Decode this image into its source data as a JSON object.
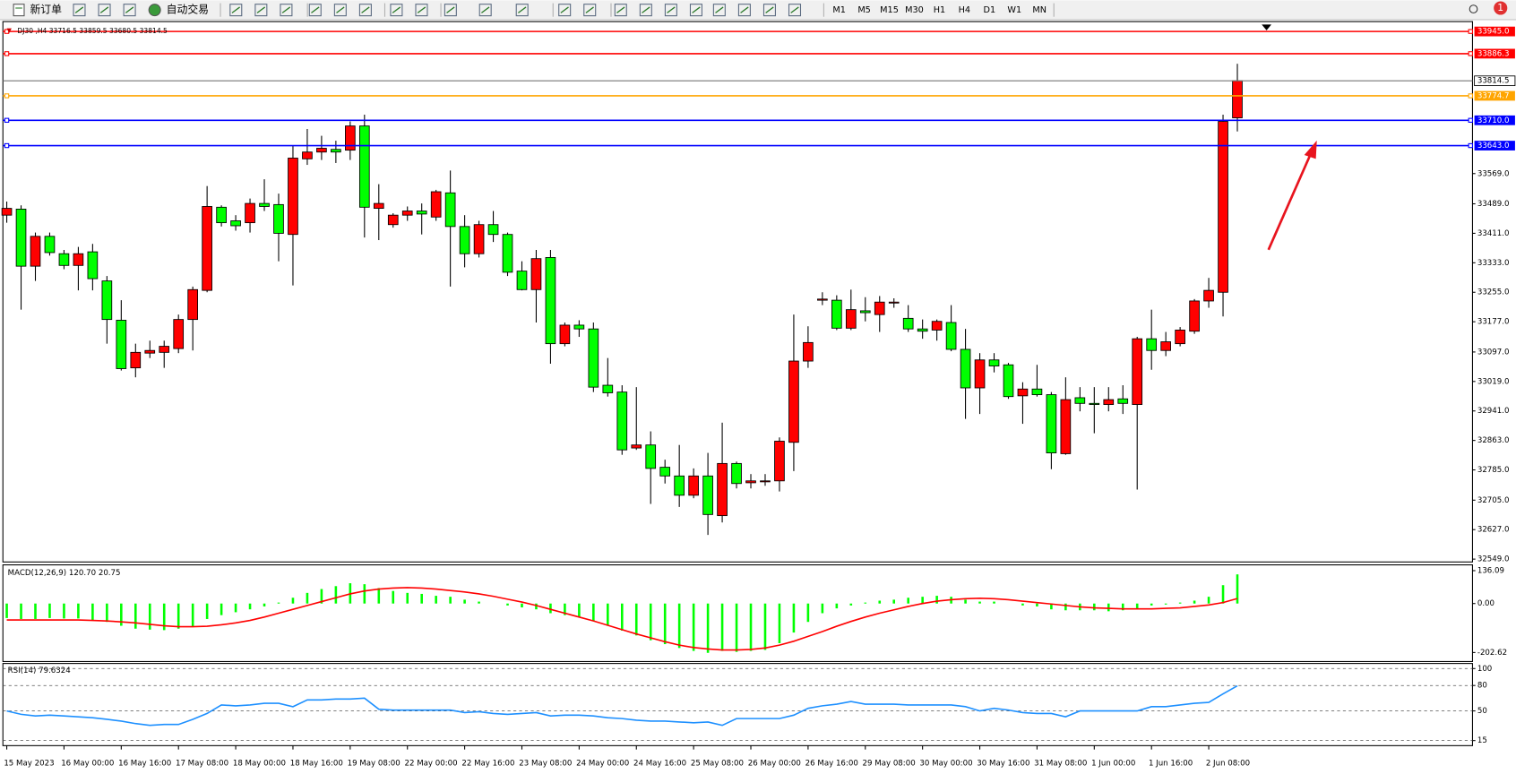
{
  "toolbar": {
    "new_order": "新订单",
    "auto_trading": "自动交易",
    "timeframes": [
      "M1",
      "M5",
      "M15",
      "M30",
      "H1",
      "H4",
      "D1",
      "W1",
      "MN"
    ],
    "notifications": 1
  },
  "chart_data": [
    {
      "type": "candlestick",
      "symbol": "DJ30 ,H4",
      "categories": [
        "15 May 2023",
        null,
        null,
        null,
        "16 May 00:00",
        null,
        null,
        null,
        "16 May 16:00",
        null,
        null,
        null,
        "17 May 08:00",
        null,
        null,
        null,
        "18 May 00:00",
        null,
        null,
        null,
        "18 May 16:00",
        null,
        null,
        null,
        "19 May 08:00",
        null,
        null,
        null,
        "22 May 00:00",
        null,
        null,
        null,
        "22 May 16:00",
        null,
        null,
        null,
        "23 May 08:00",
        null,
        null,
        null,
        "24 May 00:00",
        null,
        null,
        null,
        "24 May 16:00",
        null,
        null,
        null,
        "25 May 08:00",
        null,
        null,
        null,
        "26 May 00:00",
        null,
        null,
        null,
        "26 May 16:00",
        null,
        null,
        null,
        "29 May 08:00",
        null,
        null,
        null,
        "30 May 00:00",
        null,
        null,
        null,
        "30 May 16:00",
        null,
        null,
        null,
        "31 May 08:00",
        null,
        null,
        null,
        "1 Jun 00:00",
        null,
        null,
        null,
        "1 Jun 16:00",
        null,
        null,
        null,
        "2 Jun 08:00",
        null,
        null
      ],
      "open": [
        33459,
        33475,
        33324,
        33403,
        33357,
        33326,
        33362,
        33285,
        33181,
        33055,
        33094,
        33096,
        33106,
        33183,
        33260,
        33480,
        33444,
        33439,
        33490,
        33487,
        33408,
        33608,
        33626,
        33633,
        33631,
        33695,
        33477,
        33434,
        33459,
        33470,
        33454,
        33518,
        33429,
        33357,
        33434,
        33408,
        33311,
        33262,
        33347,
        33119,
        33168,
        33158,
        33009,
        32991,
        32843,
        32851,
        32792,
        32769,
        32718,
        32769,
        32664,
        32802,
        32751,
        32754,
        32756,
        32858,
        33073,
        33234,
        33234,
        33160,
        33206,
        33196,
        33227,
        33186,
        33158,
        33155,
        33175,
        33104,
        33002,
        33076,
        33063,
        32981,
        32999,
        32984,
        32828,
        32976,
        32961,
        32958,
        32973,
        32958,
        33132,
        33101,
        33119,
        33152,
        33232,
        33255,
        33716.5
      ],
      "high": [
        33495,
        33485,
        33413,
        33413,
        33367,
        33375,
        33383,
        33298,
        33234,
        33119,
        33127,
        33127,
        33196,
        33270,
        33536,
        33485,
        33459,
        33503,
        33554,
        33516,
        33643,
        33687,
        33669,
        33656,
        33707,
        33725,
        33541,
        33464,
        33482,
        33490,
        33526,
        33577,
        33459,
        33444,
        33470,
        33413,
        33337,
        33367,
        33367,
        33175,
        33181,
        33175,
        33081,
        33009,
        33004,
        32887,
        32812,
        32851,
        32789,
        32830,
        32910,
        32807,
        32774,
        32774,
        32871,
        33196,
        33165,
        33255,
        33247,
        33262,
        33242,
        33245,
        33239,
        33221,
        33183,
        33183,
        33221,
        33158,
        33094,
        33094,
        33068,
        33017,
        33063,
        32991,
        33030,
        33004,
        33004,
        33004,
        33009,
        33137,
        33209,
        33150,
        33163,
        33237,
        33293,
        33725,
        33859.5
      ],
      "low": [
        33439,
        33209,
        33285,
        33352,
        33316,
        33260,
        33260,
        33119,
        33048,
        33030,
        33081,
        33055,
        33094,
        33101,
        33255,
        33429,
        33418,
        33413,
        33470,
        33337,
        33273,
        33592,
        33605,
        33597,
        33605,
        33400,
        33393,
        33426,
        33444,
        33408,
        33444,
        33270,
        33321,
        33347,
        33388,
        33298,
        33260,
        33175,
        33066,
        33112,
        33137,
        32991,
        32979,
        32825,
        32838,
        32695,
        32749,
        32687,
        32710,
        32613,
        32646,
        32736,
        32736,
        32743,
        32728,
        32782,
        33055,
        33221,
        33155,
        33155,
        33178,
        33150,
        33214,
        33150,
        33132,
        33127,
        33099,
        32920,
        32933,
        33043,
        32973,
        32907,
        32979,
        32787,
        32825,
        32940,
        32882,
        32940,
        32933,
        32733,
        33050,
        33086,
        33112,
        33145,
        33214,
        33191,
        33680.5
      ],
      "close": [
        33477,
        33324,
        33403,
        33360,
        33326,
        33357,
        33291,
        33183,
        33053,
        33096,
        33101,
        33112,
        33183,
        33262,
        33482,
        33439,
        33431,
        33490,
        33482,
        33411,
        33610,
        33626,
        33636,
        33626,
        33695,
        33480,
        33490,
        33459,
        33470,
        33462,
        33521,
        33429,
        33357,
        33434,
        33408,
        33308,
        33262,
        33344,
        33119,
        33168,
        33158,
        33004,
        32989,
        32838,
        32851,
        32789,
        32769,
        32718,
        32769,
        32667,
        32802,
        32749,
        32756,
        32756,
        32861,
        33073,
        33122,
        33237,
        33160,
        33209,
        33201,
        33229,
        33229,
        33158,
        33152,
        33178,
        33104,
        33002,
        33076,
        33060,
        32979,
        32999,
        32984,
        32830,
        32971,
        32961,
        32958,
        32971,
        32961,
        33132,
        33101,
        33124,
        33155,
        33232,
        33260,
        33707,
        33814.5
      ],
      "up_color": "#ff0000",
      "down_color": "#00ff00",
      "ylim": [
        32544,
        33966
      ],
      "yticks": [
        {
          "value": 33569,
          "label": "33569.0"
        },
        {
          "value": 33489,
          "label": "33489.0"
        },
        {
          "value": 33411,
          "label": "33411.0"
        },
        {
          "value": 33333,
          "label": "33333.0"
        },
        {
          "value": 33255,
          "label": "33255.0"
        },
        {
          "value": 33177,
          "label": "33177.0"
        },
        {
          "value": 33097,
          "label": "33097.0"
        },
        {
          "value": 33019,
          "label": "33019.0"
        },
        {
          "value": 32941,
          "label": "32941.0"
        },
        {
          "value": 32863,
          "label": "32863.0"
        },
        {
          "value": 32785,
          "label": "32785.0"
        },
        {
          "value": 32705,
          "label": "32705.0"
        },
        {
          "value": 32627,
          "label": "32627.0"
        },
        {
          "value": 32549,
          "label": "32549.0"
        }
      ],
      "levels": [
        {
          "value": 33945,
          "label": "33945.0",
          "color": "#ff0000"
        },
        {
          "value": 33886.3,
          "label": "33886.3",
          "color": "#ff0000"
        },
        {
          "value": 33774.7,
          "label": "33774.7",
          "color": "#ffa500"
        },
        {
          "value": 33710,
          "label": "33710.0",
          "color": "#0000ff"
        },
        {
          "value": 33643,
          "label": "33643.0",
          "color": "#0000ff"
        }
      ]
    },
    {
      "type": "macd",
      "title": "MACD(12,26,9)",
      "readout_labels": [
        "120.70",
        "20.75"
      ],
      "histogram": [
        -60,
        -64,
        -64,
        -60,
        -62,
        -62,
        -68,
        -76,
        -92,
        -104,
        -108,
        -110,
        -104,
        -96,
        -64,
        -48,
        -36,
        -24,
        -12,
        4,
        24,
        44,
        60,
        72,
        84,
        80,
        64,
        52,
        44,
        40,
        32,
        28,
        16,
        8,
        0,
        -8,
        -16,
        -24,
        -40,
        -48,
        -56,
        -72,
        -92,
        -112,
        -132,
        -152,
        -168,
        -184,
        -196,
        -204,
        -196,
        -200,
        -196,
        -192,
        -164,
        -120,
        -76,
        -40,
        -20,
        -8,
        4,
        12,
        16,
        24,
        28,
        32,
        28,
        16,
        8,
        8,
        0,
        -8,
        -12,
        -24,
        -28,
        -28,
        -28,
        -32,
        -28,
        -20,
        -8,
        -4,
        4,
        12,
        28,
        76,
        120.7
      ],
      "signal": [
        -68,
        -68,
        -68,
        -68,
        -68,
        -68,
        -70,
        -72,
        -76,
        -80,
        -86,
        -92,
        -96,
        -96,
        -94,
        -88,
        -80,
        -70,
        -56,
        -40,
        -24,
        -8,
        8,
        24,
        40,
        52,
        60,
        64,
        66,
        64,
        60,
        54,
        48,
        40,
        30,
        18,
        6,
        -8,
        -24,
        -40,
        -56,
        -72,
        -90,
        -108,
        -126,
        -142,
        -158,
        -172,
        -182,
        -188,
        -192,
        -192,
        -190,
        -184,
        -172,
        -156,
        -136,
        -116,
        -94,
        -74,
        -56,
        -40,
        -26,
        -12,
        0,
        10,
        16,
        20,
        22,
        20,
        16,
        10,
        4,
        -2,
        -8,
        -14,
        -18,
        -20,
        -22,
        -22,
        -22,
        -20,
        -18,
        -12,
        -6,
        4,
        20.75
      ],
      "histogram_color": "#00ff00",
      "signal_color": "#ff0000",
      "ylim": [
        -240,
        160
      ],
      "yticks": [
        136.09,
        {
          "value": 0,
          "label": "0.00"
        },
        -202.62
      ]
    },
    {
      "type": "line",
      "title": "RSI(14)",
      "values": [
        50,
        46,
        44,
        45,
        44,
        43,
        42,
        40,
        38,
        35,
        33,
        34,
        34,
        40,
        47,
        57,
        56,
        57,
        59,
        59,
        55,
        63,
        63,
        64,
        64,
        65,
        52,
        51,
        51,
        51,
        51,
        51,
        48,
        49,
        47,
        46,
        47,
        48,
        44,
        45,
        45,
        44,
        42,
        41,
        39,
        38,
        38,
        37,
        36,
        37,
        33,
        41,
        41,
        41,
        41,
        45,
        53,
        56,
        58,
        61,
        58,
        58,
        58,
        57,
        57,
        57,
        57,
        55,
        50,
        53,
        51,
        48,
        47,
        47,
        43,
        50,
        50,
        50,
        50,
        50,
        55,
        55,
        57,
        59,
        60,
        70,
        79.6324
      ],
      "color": "#1e90ff",
      "ylim": [
        9,
        106
      ],
      "yticks": [
        100,
        80,
        50,
        15
      ],
      "grid": "dashed"
    }
  ]
}
